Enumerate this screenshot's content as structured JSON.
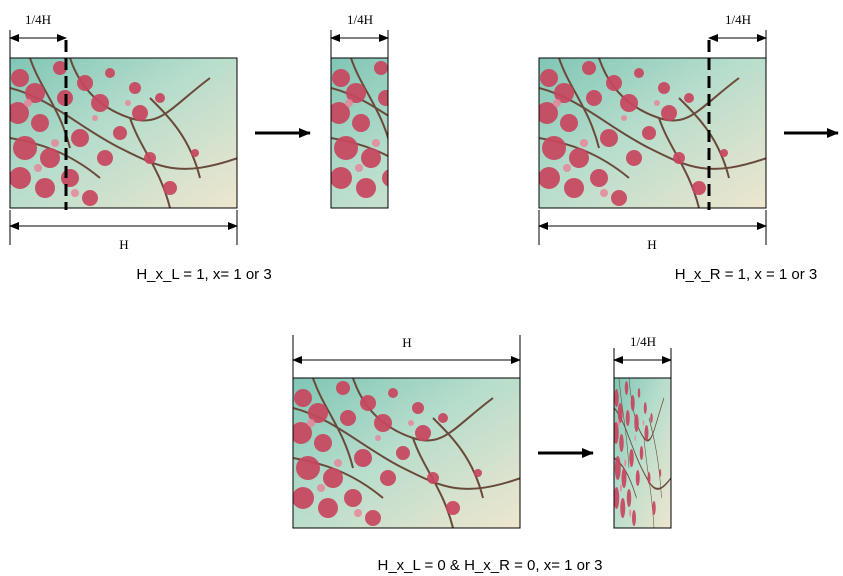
{
  "panel_left": {
    "quarter_label": "1/4H",
    "quarter_label_output": "1/4H",
    "width_label": "H",
    "caption": "H_x_L = 1, x= 1 or 3"
  },
  "panel_right": {
    "quarter_label": "1/4H",
    "width_label": "H",
    "caption": "H_x_R = 1, x = 1 or 3"
  },
  "panel_bottom": {
    "width_label": "H",
    "quarter_label_output": "1/4H",
    "caption": "H_x_L = 0 & H_x_R = 0, x= 1 or 3"
  },
  "colors": {
    "sky": "#a9d7c6",
    "blossom": "#c8465e",
    "branch": "#6a4a3a"
  }
}
